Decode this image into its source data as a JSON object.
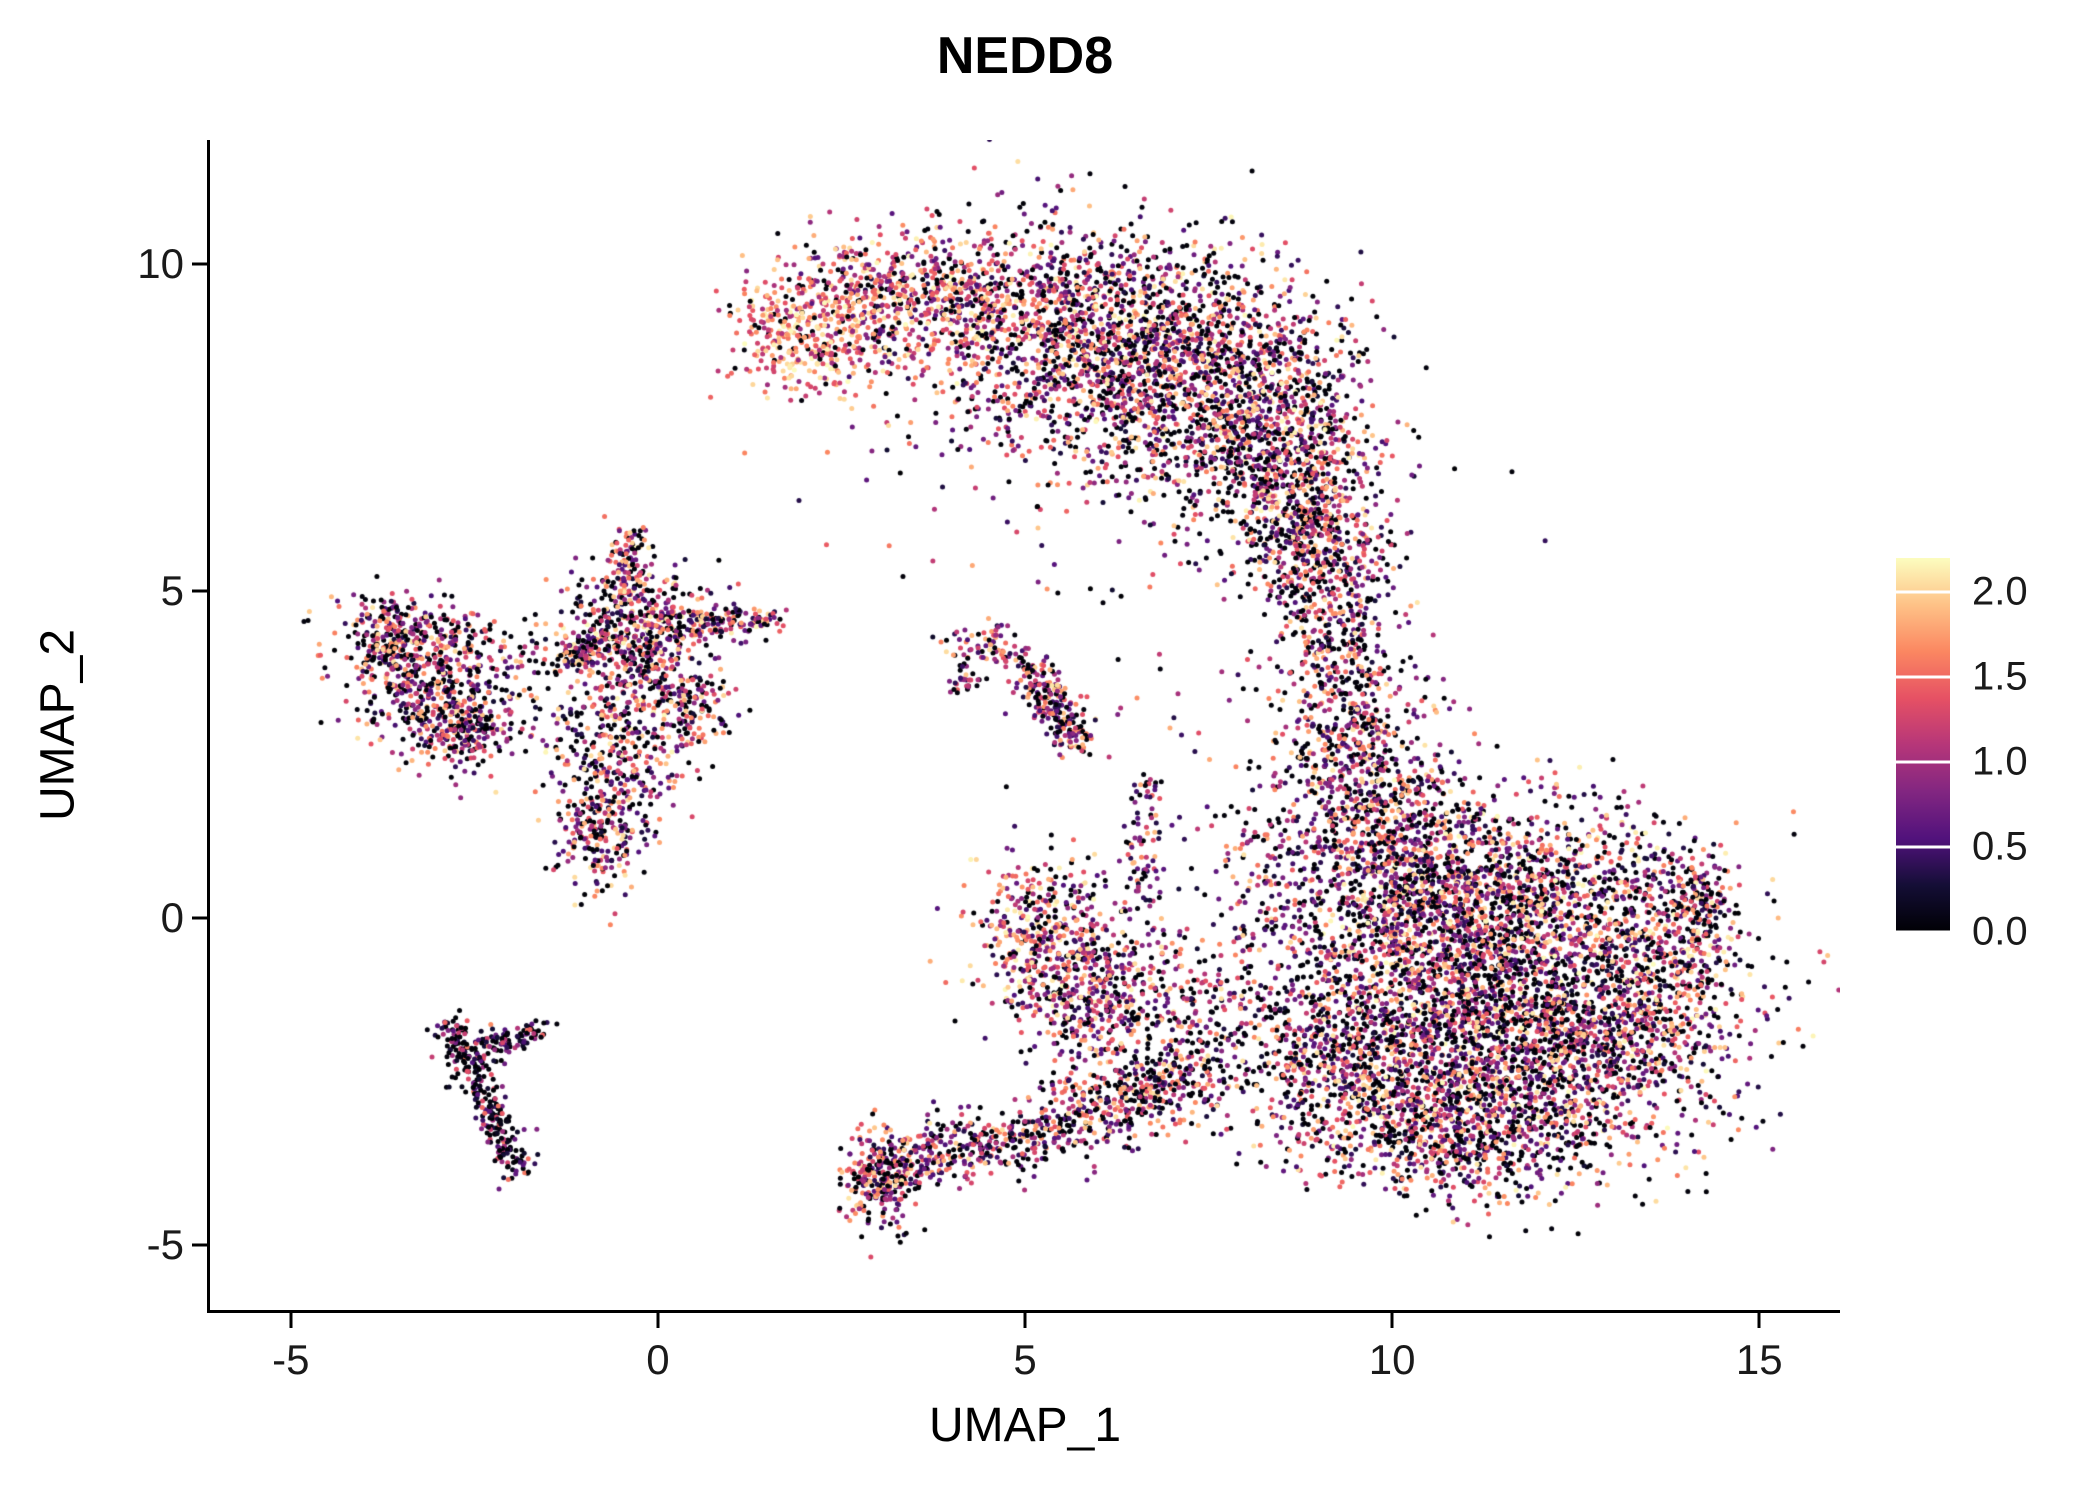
{
  "title": "NEDD8",
  "chart_data": {
    "type": "scatter",
    "title": "NEDD8",
    "xlabel": "UMAP_1",
    "ylabel": "UMAP_2",
    "xlim": [
      -6.1,
      16.1
    ],
    "ylim": [
      -6.0,
      11.9
    ],
    "x_ticks": [
      {
        "value": -5,
        "label": "-5"
      },
      {
        "value": 0,
        "label": "0"
      },
      {
        "value": 5,
        "label": "5"
      },
      {
        "value": 10,
        "label": "10"
      },
      {
        "value": 15,
        "label": "15"
      }
    ],
    "y_ticks": [
      {
        "value": -5,
        "label": "-5"
      },
      {
        "value": 0,
        "label": "0"
      },
      {
        "value": 5,
        "label": "5"
      },
      {
        "value": 10,
        "label": "10"
      }
    ],
    "grid": false,
    "legend_position": "right",
    "legend": {
      "range": [
        0,
        2.2
      ],
      "ticks": [
        {
          "value": 0.0,
          "label": "0.0"
        },
        {
          "value": 0.5,
          "label": "0.5"
        },
        {
          "value": 1.0,
          "label": "1.0"
        },
        {
          "value": 1.5,
          "label": "1.5"
        },
        {
          "value": 2.0,
          "label": "2.0"
        }
      ]
    },
    "colormap_name": "magma",
    "colormap_stops": [
      {
        "t": 0.0,
        "color": "#000004"
      },
      {
        "t": 0.125,
        "color": "#140e36"
      },
      {
        "t": 0.25,
        "color": "#51127c"
      },
      {
        "t": 0.375,
        "color": "#822681"
      },
      {
        "t": 0.5,
        "color": "#b63679"
      },
      {
        "t": 0.625,
        "color": "#e65164"
      },
      {
        "t": 0.75,
        "color": "#fb8761"
      },
      {
        "t": 0.875,
        "color": "#fec287"
      },
      {
        "t": 1.0,
        "color": "#fcfdbf"
      }
    ],
    "point_radius_px": 2.5,
    "seed": 1337,
    "clusters": [
      {
        "name": "arch-tip",
        "type": "gauss",
        "cx": 2.0,
        "cy": 9.0,
        "sx": 0.55,
        "sy": 0.45,
        "n": 380,
        "p0": 0.1,
        "lo": 0.9,
        "hi": 2.2,
        "pow": 0.8
      },
      {
        "name": "arch-left",
        "type": "gauss",
        "cx": 3.3,
        "cy": 9.5,
        "sx": 0.8,
        "sy": 0.55,
        "n": 500,
        "p0": 0.18,
        "lo": 0.5,
        "hi": 2.2,
        "pow": 0.9
      },
      {
        "name": "arch-mid",
        "type": "gauss",
        "cx": 5.0,
        "cy": 9.2,
        "sx": 1.0,
        "sy": 0.75,
        "n": 750,
        "p0": 0.25,
        "lo": 0.3,
        "hi": 2.2,
        "pow": 1.0
      },
      {
        "name": "arch-mid2",
        "type": "gauss",
        "cx": 6.5,
        "cy": 8.7,
        "sx": 1.0,
        "sy": 0.9,
        "n": 950,
        "p0": 0.3,
        "lo": 0.25,
        "hi": 2.2,
        "pow": 1.1
      },
      {
        "name": "arch-right",
        "type": "gauss",
        "cx": 7.8,
        "cy": 7.9,
        "sx": 0.9,
        "sy": 1.0,
        "n": 950,
        "p0": 0.3,
        "lo": 0.25,
        "hi": 2.2,
        "pow": 1.1
      },
      {
        "name": "arch-right2",
        "type": "gauss",
        "cx": 8.6,
        "cy": 6.9,
        "sx": 0.6,
        "sy": 0.9,
        "n": 600,
        "p0": 0.3,
        "lo": 0.25,
        "hi": 2.2,
        "pow": 1.1
      },
      {
        "name": "arch-under",
        "type": "gauss",
        "cx": 5.6,
        "cy": 7.7,
        "sx": 1.4,
        "sy": 0.7,
        "n": 170,
        "p0": 0.3,
        "lo": 0.25,
        "hi": 2.0,
        "pow": 1.1
      },
      {
        "name": "bridge-top",
        "type": "gauss",
        "cx": 8.9,
        "cy": 5.7,
        "sx": 0.45,
        "sy": 0.6,
        "n": 300,
        "p0": 0.3,
        "lo": 0.25,
        "hi": 2.1,
        "pow": 1.1
      },
      {
        "name": "bridge",
        "type": "gauss",
        "cx": 9.3,
        "cy": 4.3,
        "sx": 0.45,
        "sy": 1.0,
        "n": 380,
        "p0": 0.3,
        "lo": 0.25,
        "hi": 2.1,
        "pow": 1.1
      },
      {
        "name": "bridge-low",
        "type": "gauss",
        "cx": 9.4,
        "cy": 2.7,
        "sx": 0.55,
        "sy": 0.8,
        "n": 320,
        "p0": 0.3,
        "lo": 0.25,
        "hi": 2.1,
        "pow": 1.1
      },
      {
        "name": "neck",
        "type": "gauss",
        "cx": 9.8,
        "cy": 1.7,
        "sx": 0.6,
        "sy": 0.7,
        "n": 300,
        "p0": 0.3,
        "lo": 0.25,
        "hi": 2.1,
        "pow": 1.1
      },
      {
        "name": "blob-nw",
        "type": "gauss",
        "cx": 10.4,
        "cy": 0.4,
        "sx": 0.9,
        "sy": 0.8,
        "n": 850,
        "p0": 0.3,
        "lo": 0.25,
        "hi": 2.2,
        "pow": 1.15
      },
      {
        "name": "blob-n",
        "type": "gauss",
        "cx": 11.9,
        "cy": 0.3,
        "sx": 1.2,
        "sy": 0.75,
        "n": 1000,
        "p0": 0.3,
        "lo": 0.25,
        "hi": 2.2,
        "pow": 1.15
      },
      {
        "name": "blob-core",
        "type": "gauss",
        "cx": 11.3,
        "cy": -1.2,
        "sx": 1.5,
        "sy": 0.85,
        "n": 1450,
        "p0": 0.3,
        "lo": 0.25,
        "hi": 2.2,
        "pow": 1.15
      },
      {
        "name": "blob-se",
        "type": "gauss",
        "cx": 12.6,
        "cy": -2.2,
        "sx": 1.1,
        "sy": 0.8,
        "n": 900,
        "p0": 0.3,
        "lo": 0.25,
        "hi": 2.2,
        "pow": 1.15
      },
      {
        "name": "blob-sw",
        "type": "gauss",
        "cx": 10.4,
        "cy": -2.6,
        "sx": 0.95,
        "sy": 0.8,
        "n": 750,
        "p0": 0.32,
        "lo": 0.25,
        "hi": 2.2,
        "pow": 1.15
      },
      {
        "name": "blob-sw-edge",
        "type": "gauss",
        "cx": 9.0,
        "cy": -2.2,
        "sx": 0.6,
        "sy": 0.7,
        "n": 350,
        "p0": 0.34,
        "lo": 0.2,
        "hi": 2.1,
        "pow": 1.2
      },
      {
        "name": "blob-e",
        "type": "gauss",
        "cx": 13.7,
        "cy": -0.6,
        "sx": 0.55,
        "sy": 0.8,
        "n": 320,
        "p0": 0.3,
        "lo": 0.25,
        "hi": 2.2,
        "pow": 1.15
      },
      {
        "name": "blob-tip",
        "type": "gauss",
        "cx": 14.2,
        "cy": 0.2,
        "sx": 0.25,
        "sy": 0.35,
        "n": 120,
        "p0": 0.3,
        "lo": 0.25,
        "hi": 2.2,
        "pow": 1.1
      },
      {
        "name": "blob-s",
        "type": "gauss",
        "cx": 11.1,
        "cy": -3.4,
        "sx": 1.0,
        "sy": 0.5,
        "n": 420,
        "p0": 0.32,
        "lo": 0.25,
        "hi": 2.2,
        "pow": 1.15
      },
      {
        "name": "blob-w-sparse",
        "type": "gauss",
        "cx": 8.6,
        "cy": 0.6,
        "sx": 0.6,
        "sy": 1.0,
        "n": 200,
        "p0": 0.35,
        "lo": 0.25,
        "hi": 2.0,
        "pow": 1.2
      },
      {
        "name": "left-cluster-a",
        "type": "gauss",
        "cx": -3.7,
        "cy": 4.2,
        "sx": 0.35,
        "sy": 0.35,
        "n": 200,
        "p0": 0.3,
        "lo": 0.25,
        "hi": 2.1,
        "pow": 1.1
      },
      {
        "name": "left-cluster-b",
        "type": "gauss",
        "cx": -3.0,
        "cy": 3.5,
        "sx": 0.5,
        "sy": 0.5,
        "n": 320,
        "p0": 0.3,
        "lo": 0.25,
        "hi": 2.1,
        "pow": 1.1
      },
      {
        "name": "left-cluster-c",
        "type": "gauss",
        "cx": -2.6,
        "cy": 2.85,
        "sx": 0.35,
        "sy": 0.3,
        "n": 170,
        "p0": 0.3,
        "lo": 0.25,
        "hi": 2.1,
        "pow": 1.1
      },
      {
        "name": "left-cluster-arm",
        "type": "line",
        "x1": -3.9,
        "y1": 4.55,
        "x2": -2.6,
        "y2": 4.3,
        "w": 0.18,
        "n": 90,
        "p0": 0.3,
        "lo": 0.25,
        "hi": 2.1,
        "pow": 1.1
      },
      {
        "name": "left-cluster-sparse",
        "type": "gauss",
        "cx": -2.9,
        "cy": 3.7,
        "sx": 0.75,
        "sy": 0.65,
        "n": 130,
        "p0": 0.32,
        "lo": 0.25,
        "hi": 2.1,
        "pow": 1.1
      },
      {
        "name": "left-between",
        "type": "gauss",
        "cx": -1.55,
        "cy": 4.0,
        "sx": 0.25,
        "sy": 0.35,
        "n": 35,
        "p0": 0.35,
        "lo": 0.25,
        "hi": 2.0,
        "pow": 1.2
      },
      {
        "name": "aster-core",
        "type": "gauss",
        "cx": -0.25,
        "cy": 4.5,
        "sx": 0.5,
        "sy": 0.45,
        "n": 420,
        "p0": 0.28,
        "lo": 0.25,
        "hi": 2.2,
        "pow": 1.05
      },
      {
        "name": "aster-arm-up",
        "type": "line",
        "x1": -0.5,
        "y1": 4.9,
        "x2": -0.35,
        "y2": 5.85,
        "w": 0.12,
        "n": 100,
        "p0": 0.28,
        "lo": 0.25,
        "hi": 2.2,
        "pow": 1.1
      },
      {
        "name": "aster-arm-right",
        "type": "line",
        "x1": 0.3,
        "y1": 4.5,
        "x2": 1.65,
        "y2": 4.55,
        "w": 0.12,
        "n": 130,
        "p0": 0.28,
        "lo": 0.25,
        "hi": 2.2,
        "pow": 1.1
      },
      {
        "name": "aster-arm-left",
        "type": "line",
        "x1": -0.7,
        "y1": 4.3,
        "x2": -1.35,
        "y2": 3.85,
        "w": 0.14,
        "n": 90,
        "p0": 0.28,
        "lo": 0.25,
        "hi": 2.2,
        "pow": 1.1
      },
      {
        "name": "aster-mid",
        "type": "gauss",
        "cx": -0.2,
        "cy": 3.6,
        "sx": 0.45,
        "sy": 0.4,
        "n": 200,
        "p0": 0.28,
        "lo": 0.25,
        "hi": 2.2,
        "pow": 1.1
      },
      {
        "name": "aster-low",
        "type": "gauss",
        "cx": -0.55,
        "cy": 2.4,
        "sx": 0.5,
        "sy": 0.6,
        "n": 320,
        "p0": 0.28,
        "lo": 0.25,
        "hi": 2.2,
        "pow": 1.1
      },
      {
        "name": "aster-low2",
        "type": "gauss",
        "cx": -0.85,
        "cy": 1.2,
        "sx": 0.32,
        "sy": 0.5,
        "n": 190,
        "p0": 0.3,
        "lo": 0.25,
        "hi": 2.1,
        "pow": 1.1
      },
      {
        "name": "aster-right-bit",
        "type": "gauss",
        "cx": 0.45,
        "cy": 3.1,
        "sx": 0.3,
        "sy": 0.3,
        "n": 90,
        "p0": 0.3,
        "lo": 0.25,
        "hi": 2.1,
        "pow": 1.1
      },
      {
        "name": "mid-small-a",
        "type": "gauss",
        "cx": 4.5,
        "cy": 4.1,
        "sx": 0.3,
        "sy": 0.18,
        "n": 80,
        "p0": 0.28,
        "lo": 0.3,
        "hi": 2.1,
        "pow": 1.0
      },
      {
        "name": "mid-small-b",
        "type": "line",
        "x1": 5.05,
        "y1": 3.85,
        "x2": 5.75,
        "y2": 2.65,
        "w": 0.16,
        "n": 230,
        "p0": 0.28,
        "lo": 0.3,
        "hi": 2.1,
        "pow": 1.0
      },
      {
        "name": "mid-small-c",
        "type": "gauss",
        "cx": 4.15,
        "cy": 3.6,
        "sx": 0.12,
        "sy": 0.12,
        "n": 25,
        "p0": 0.3,
        "lo": 0.3,
        "hi": 2.0,
        "pow": 1.0
      },
      {
        "name": "streak-main",
        "type": "line",
        "x1": -2.85,
        "y1": -1.55,
        "x2": -1.9,
        "y2": -3.85,
        "w": 0.13,
        "n": 280,
        "p0": 0.5,
        "lo": 0.1,
        "hi": 1.6,
        "pow": 1.5
      },
      {
        "name": "streak-fork",
        "type": "line",
        "x1": -2.55,
        "y1": -2.1,
        "x2": -1.6,
        "y2": -1.65,
        "w": 0.12,
        "n": 110,
        "p0": 0.45,
        "lo": 0.1,
        "hi": 1.7,
        "pow": 1.4
      },
      {
        "name": "bottom-clump",
        "type": "gauss",
        "cx": 3.0,
        "cy": -4.0,
        "sx": 0.28,
        "sy": 0.38,
        "n": 260,
        "p0": 0.28,
        "lo": 0.3,
        "hi": 2.1,
        "pow": 1.0
      },
      {
        "name": "bottom-band",
        "type": "line",
        "x1": 3.3,
        "y1": -3.75,
        "x2": 5.4,
        "y2": -3.25,
        "w": 0.25,
        "n": 330,
        "p0": 0.3,
        "lo": 0.25,
        "hi": 2.1,
        "pow": 1.1
      },
      {
        "name": "bottom-rise",
        "type": "line",
        "x1": 5.5,
        "y1": -3.1,
        "x2": 7.6,
        "y2": -2.3,
        "w": 0.35,
        "n": 480,
        "p0": 0.3,
        "lo": 0.25,
        "hi": 2.1,
        "pow": 1.1
      },
      {
        "name": "mid-left-blob",
        "type": "gauss",
        "cx": 5.3,
        "cy": -0.2,
        "sx": 0.5,
        "sy": 0.55,
        "n": 380,
        "p0": 0.22,
        "lo": 0.35,
        "hi": 2.2,
        "pow": 0.9
      },
      {
        "name": "mid-left-blob2",
        "type": "gauss",
        "cx": 5.7,
        "cy": -1.2,
        "sx": 0.5,
        "sy": 0.55,
        "n": 300,
        "p0": 0.28,
        "lo": 0.3,
        "hi": 2.2,
        "pow": 1.0
      },
      {
        "name": "mid-scatter",
        "type": "gauss",
        "cx": 6.9,
        "cy": -1.2,
        "sx": 0.7,
        "sy": 0.6,
        "n": 260,
        "p0": 0.3,
        "lo": 0.25,
        "hi": 2.1,
        "pow": 1.1
      },
      {
        "name": "mid-vert-sparse",
        "type": "line",
        "x1": 6.55,
        "y1": 0.3,
        "x2": 6.7,
        "y2": 2.1,
        "w": 0.15,
        "n": 80,
        "p0": 0.32,
        "lo": 0.25,
        "hi": 2.0,
        "pow": 1.2
      },
      {
        "name": "sparse-noise-upper",
        "type": "gauss",
        "cx": 5.5,
        "cy": 6.0,
        "sx": 2.5,
        "sy": 1.2,
        "n": 40,
        "p0": 0.4,
        "lo": 0.2,
        "hi": 2.0,
        "pow": 1.3
      },
      {
        "name": "sparse-noise-mid",
        "type": "gauss",
        "cx": 7.0,
        "cy": 2.5,
        "sx": 1.0,
        "sy": 0.8,
        "n": 25,
        "p0": 0.4,
        "lo": 0.2,
        "hi": 2.0,
        "pow": 1.3
      }
    ]
  }
}
